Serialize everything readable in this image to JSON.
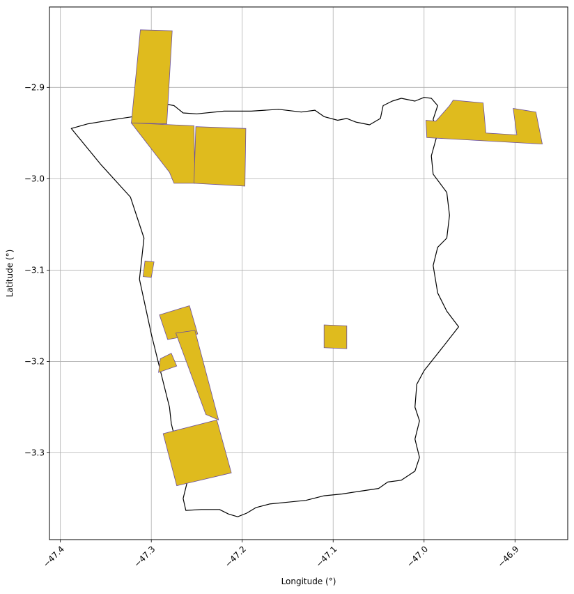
{
  "chart_data": {
    "type": "map",
    "xlabel": "Longitude (°)",
    "ylabel": "Latitude (°)",
    "xlim": [
      -47.412,
      -46.842
    ],
    "ylim": [
      -3.395,
      -2.812
    ],
    "grid": true,
    "x_ticks": [
      {
        "value": -47.4,
        "label": "−47.4"
      },
      {
        "value": -47.3,
        "label": "−47.3"
      },
      {
        "value": -47.2,
        "label": "−47.2"
      },
      {
        "value": -47.1,
        "label": "−47.1"
      },
      {
        "value": -47.0,
        "label": "−47.0"
      },
      {
        "value": -46.9,
        "label": "−46.9"
      }
    ],
    "y_ticks": [
      {
        "value": -2.9,
        "label": "−2.9"
      },
      {
        "value": -3.0,
        "label": "−3.0"
      },
      {
        "value": -3.1,
        "label": "−3.1"
      },
      {
        "value": -3.2,
        "label": "−3.2"
      },
      {
        "value": -3.3,
        "label": "−3.3"
      }
    ],
    "colors": {
      "fill": "#DFBB1E",
      "edge": "#6A4FA0",
      "boundary": "#000000",
      "grid": "#b0b0b0"
    },
    "boundary": [
      [
        -47.388,
        -2.945
      ],
      [
        -47.37,
        -2.94
      ],
      [
        -47.34,
        -2.935
      ],
      [
        -47.32,
        -2.932
      ],
      [
        -47.305,
        -2.924
      ],
      [
        -47.29,
        -2.917
      ],
      [
        -47.275,
        -2.92
      ],
      [
        -47.265,
        -2.928
      ],
      [
        -47.25,
        -2.929
      ],
      [
        -47.22,
        -2.926
      ],
      [
        -47.19,
        -2.926
      ],
      [
        -47.16,
        -2.924
      ],
      [
        -47.135,
        -2.927
      ],
      [
        -47.12,
        -2.925
      ],
      [
        -47.11,
        -2.932
      ],
      [
        -47.095,
        -2.936
      ],
      [
        -47.085,
        -2.934
      ],
      [
        -47.075,
        -2.938
      ],
      [
        -47.06,
        -2.941
      ],
      [
        -47.048,
        -2.934
      ],
      [
        -47.045,
        -2.92
      ],
      [
        -47.035,
        -2.915
      ],
      [
        -47.025,
        -2.912
      ],
      [
        -47.01,
        -2.915
      ],
      [
        -47.0,
        -2.911
      ],
      [
        -46.992,
        -2.912
      ],
      [
        -46.985,
        -2.92
      ],
      [
        -46.99,
        -2.935
      ],
      [
        -46.985,
        -2.95
      ],
      [
        -46.992,
        -2.975
      ],
      [
        -46.99,
        -2.995
      ],
      [
        -46.975,
        -3.015
      ],
      [
        -46.972,
        -3.04
      ],
      [
        -46.975,
        -3.065
      ],
      [
        -46.985,
        -3.075
      ],
      [
        -46.99,
        -3.095
      ],
      [
        -46.985,
        -3.125
      ],
      [
        -46.975,
        -3.145
      ],
      [
        -46.962,
        -3.162
      ],
      [
        -46.98,
        -3.185
      ],
      [
        -47.0,
        -3.21
      ],
      [
        -47.008,
        -3.225
      ],
      [
        -47.01,
        -3.25
      ],
      [
        -47.005,
        -3.265
      ],
      [
        -47.01,
        -3.285
      ],
      [
        -47.005,
        -3.305
      ],
      [
        -47.01,
        -3.32
      ],
      [
        -47.025,
        -3.33
      ],
      [
        -47.04,
        -3.332
      ],
      [
        -47.05,
        -3.339
      ],
      [
        -47.07,
        -3.342
      ],
      [
        -47.09,
        -3.345
      ],
      [
        -47.11,
        -3.347
      ],
      [
        -47.13,
        -3.352
      ],
      [
        -47.15,
        -3.354
      ],
      [
        -47.17,
        -3.356
      ],
      [
        -47.185,
        -3.36
      ],
      [
        -47.195,
        -3.366
      ],
      [
        -47.205,
        -3.37
      ],
      [
        -47.215,
        -3.367
      ],
      [
        -47.225,
        -3.362
      ],
      [
        -47.245,
        -3.362
      ],
      [
        -47.262,
        -3.363
      ],
      [
        -47.265,
        -3.35
      ],
      [
        -47.26,
        -3.33
      ],
      [
        -47.27,
        -3.3
      ],
      [
        -47.278,
        -3.268
      ],
      [
        -47.28,
        -3.25
      ],
      [
        -47.29,
        -3.21
      ],
      [
        -47.3,
        -3.17
      ],
      [
        -47.313,
        -3.11
      ],
      [
        -47.308,
        -3.065
      ],
      [
        -47.323,
        -3.02
      ],
      [
        -47.355,
        -2.985
      ],
      [
        -47.388,
        -2.945
      ]
    ],
    "polygons": [
      [
        [
          -47.312,
          -2.837
        ],
        [
          -47.277,
          -2.838
        ],
        [
          -47.283,
          -2.94
        ],
        [
          -47.322,
          -2.939
        ]
      ],
      [
        [
          -47.322,
          -2.939
        ],
        [
          -47.253,
          -2.942
        ],
        [
          -47.252,
          -3.005
        ],
        [
          -47.275,
          -3.005
        ],
        [
          -47.28,
          -2.993
        ]
      ],
      [
        [
          -47.251,
          -2.943
        ],
        [
          -47.196,
          -2.945
        ],
        [
          -47.197,
          -3.008
        ],
        [
          -47.253,
          -3.005
        ]
      ],
      [
        [
          -46.998,
          -2.936
        ],
        [
          -46.987,
          -2.937
        ],
        [
          -46.972,
          -2.92
        ],
        [
          -46.968,
          -2.914
        ],
        [
          -46.935,
          -2.917
        ],
        [
          -46.932,
          -2.95
        ],
        [
          -46.898,
          -2.952
        ],
        [
          -46.902,
          -2.923
        ],
        [
          -46.877,
          -2.927
        ],
        [
          -46.87,
          -2.962
        ],
        [
          -46.997,
          -2.955
        ]
      ],
      [
        [
          -47.307,
          -3.09
        ],
        [
          -47.297,
          -3.091
        ],
        [
          -47.3,
          -3.108
        ],
        [
          -47.309,
          -3.107
        ]
      ],
      [
        [
          -47.291,
          -3.149
        ],
        [
          -47.258,
          -3.139
        ],
        [
          -47.249,
          -3.17
        ],
        [
          -47.282,
          -3.176
        ],
        [
          -47.289,
          -3.155
        ]
      ],
      [
        [
          -47.273,
          -3.169
        ],
        [
          -47.252,
          -3.166
        ],
        [
          -47.226,
          -3.264
        ],
        [
          -47.24,
          -3.258
        ]
      ],
      [
        [
          -47.29,
          -3.197
        ],
        [
          -47.278,
          -3.191
        ],
        [
          -47.272,
          -3.205
        ],
        [
          -47.292,
          -3.212
        ]
      ],
      [
        [
          -47.287,
          -3.279
        ],
        [
          -47.228,
          -3.264
        ],
        [
          -47.212,
          -3.322
        ],
        [
          -47.272,
          -3.336
        ]
      ],
      [
        [
          -47.11,
          -3.16
        ],
        [
          -47.085,
          -3.161
        ],
        [
          -47.085,
          -3.186
        ],
        [
          -47.11,
          -3.185
        ]
      ]
    ]
  }
}
